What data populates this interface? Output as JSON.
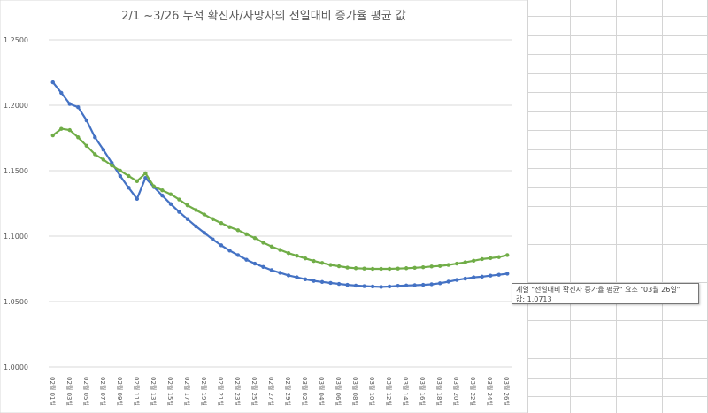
{
  "chart_data": {
    "type": "line",
    "title": "2/1 ~3/26 누적 확진자/사망자의 전일대비 증가율 평균 값",
    "xlabel": "",
    "ylabel": "",
    "ylim": [
      1.0,
      1.25
    ],
    "yticks": [
      "1.0000",
      "1.0500",
      "1.1000",
      "1.1500",
      "1.2000",
      "1.2500"
    ],
    "grid": true,
    "legend": "none",
    "x": [
      "02월 01일",
      "02월 02일",
      "02월 03일",
      "02월 04일",
      "02월 05일",
      "02월 06일",
      "02월 07일",
      "02월 08일",
      "02월 09일",
      "02월 10일",
      "02월 11일",
      "02월 12일",
      "02월 13일",
      "02월 14일",
      "02월 15일",
      "02월 16일",
      "02월 17일",
      "02월 18일",
      "02월 19일",
      "02월 20일",
      "02월 21일",
      "02월 22일",
      "02월 23일",
      "02월 24일",
      "02월 25일",
      "02월 26일",
      "02월 27일",
      "02월 28일",
      "02월 29일",
      "03월 01일",
      "03월 02일",
      "03월 03일",
      "03월 04일",
      "03월 05일",
      "03월 06일",
      "03월 07일",
      "03월 08일",
      "03월 09일",
      "03월 10일",
      "03월 11일",
      "03월 12일",
      "03월 13일",
      "03월 14일",
      "03월 15일",
      "03월 16일",
      "03월 17일",
      "03월 18일",
      "03월 19일",
      "03월 20일",
      "03월 21일",
      "03월 22일",
      "03월 23일",
      "03월 24일",
      "03월 25일",
      "03월 26일"
    ],
    "xtick_labels": [
      "02월 01일",
      "02월 03일",
      "02월 05일",
      "02월 07일",
      "02월 09일",
      "02월 11일",
      "02월 13일",
      "02월 15일",
      "02월 17일",
      "02월 19일",
      "02월 21일",
      "02월 23일",
      "02월 25일",
      "02월 27일",
      "02월 29일",
      "03월 02일",
      "03월 04일",
      "03월 06일",
      "03월 08일",
      "03월 10일",
      "03월 12일",
      "03월 14일",
      "03월 16일",
      "03월 18일",
      "03월 20일",
      "03월 22일",
      "03월 24일",
      "03월 26일"
    ],
    "series": [
      {
        "color": "#4472c4",
        "values": [
          1.2175,
          1.2095,
          1.201,
          1.1985,
          1.1885,
          1.1755,
          1.166,
          1.156,
          1.146,
          1.137,
          1.1285,
          1.1445,
          1.1375,
          1.131,
          1.1245,
          1.1185,
          1.113,
          1.1075,
          1.1025,
          1.0975,
          1.093,
          1.089,
          1.0855,
          1.082,
          1.079,
          1.0765,
          1.074,
          1.072,
          1.07,
          1.0685,
          1.067,
          1.0658,
          1.065,
          1.0642,
          1.0635,
          1.0628,
          1.0622,
          1.0618,
          1.0615,
          1.0612,
          1.0615,
          1.062,
          1.0623,
          1.0625,
          1.0628,
          1.0632,
          1.064,
          1.0652,
          1.0665,
          1.0675,
          1.0685,
          1.069,
          1.0698,
          1.0705,
          1.0713
        ]
      },
      {
        "color": "#70ad47",
        "values": [
          1.177,
          1.182,
          1.181,
          1.1755,
          1.169,
          1.1625,
          1.1585,
          1.154,
          1.15,
          1.146,
          1.142,
          1.148,
          1.138,
          1.135,
          1.132,
          1.128,
          1.1235,
          1.12,
          1.1165,
          1.113,
          1.11,
          1.107,
          1.1045,
          1.1015,
          1.0985,
          1.095,
          1.092,
          1.0895,
          1.087,
          1.085,
          1.083,
          1.081,
          1.0795,
          1.078,
          1.077,
          1.076,
          1.0755,
          1.0752,
          1.075,
          1.075,
          1.075,
          1.0752,
          1.0755,
          1.0758,
          1.0762,
          1.0768,
          1.0772,
          1.078,
          1.079,
          1.08,
          1.0812,
          1.0825,
          1.0832,
          1.084,
          1.0855
        ]
      }
    ]
  },
  "tooltip": {
    "line1": "계열 \"전일대비 확진자 증가율 평균\" 요소 \"03월 26일\"",
    "line2": "값: 1.0713"
  }
}
